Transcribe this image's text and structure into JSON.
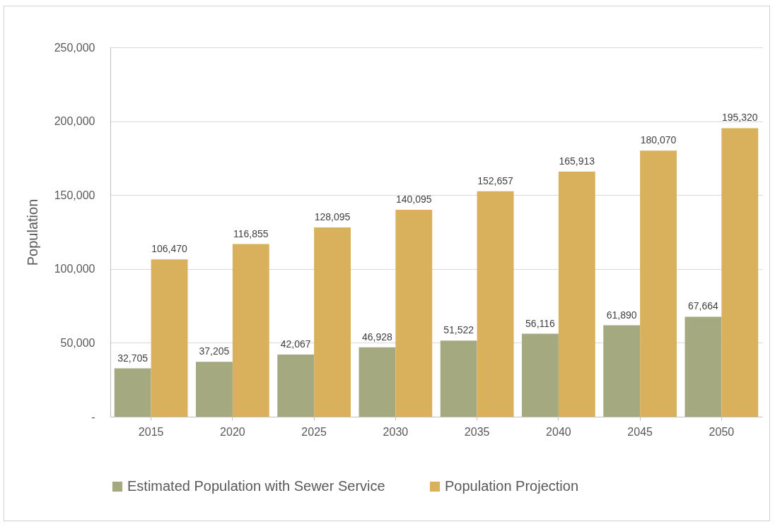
{
  "chart_data": {
    "type": "bar",
    "ylabel": "Population",
    "categories": [
      "2015",
      "2020",
      "2025",
      "2030",
      "2035",
      "2040",
      "2045",
      "2050"
    ],
    "series": [
      {
        "name": "Estimated Population with Sewer Service",
        "color": "#a5a97f",
        "values": [
          32705,
          37205,
          42067,
          46928,
          51522,
          56116,
          61890,
          67664
        ],
        "value_labels": [
          "32,705",
          "37,205",
          "42,067",
          "46,928",
          "51,522",
          "56,116",
          "61,890",
          "67,664"
        ]
      },
      {
        "name": "Population Projection",
        "color": "#d9b05c",
        "values": [
          106470,
          116855,
          128095,
          140095,
          152657,
          165913,
          180070,
          195320
        ],
        "value_labels": [
          "106,470",
          "116,855",
          "128,095",
          "140,095",
          "152,657",
          "165,913",
          "180,070",
          "195,320"
        ]
      }
    ],
    "ylim": [
      0,
      250000
    ],
    "yticks": [
      {
        "value": 0,
        "label": "-"
      },
      {
        "value": 50000,
        "label": "50,000"
      },
      {
        "value": 100000,
        "label": "100,000"
      },
      {
        "value": 150000,
        "label": "150,000"
      },
      {
        "value": 200000,
        "label": "200,000"
      },
      {
        "value": 250000,
        "label": "250,000"
      }
    ],
    "grid": "y",
    "legend": "bottom"
  }
}
